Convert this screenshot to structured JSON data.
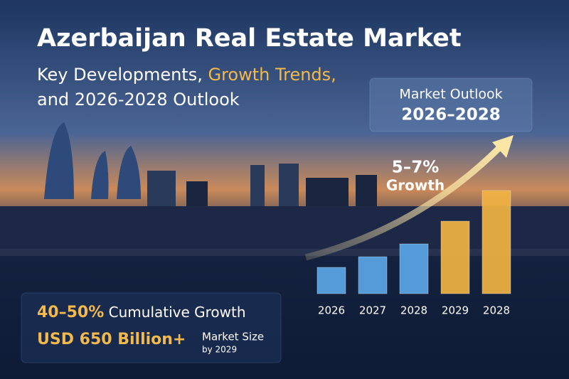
{
  "header": {
    "title": "Azerbaijan Real Estate Market",
    "subtitle_start": "Key Developments,",
    "subtitle_highlight": "Growth Trends,",
    "subtitle_end": "and 2026-2028 Outlook"
  },
  "outlook": {
    "label": "Market Outlook",
    "years": "2026–2028"
  },
  "growth": {
    "range": "5–7%",
    "label": "Growth"
  },
  "stats": {
    "growth_value": "40–50%",
    "growth_label": "Cumulative Growth",
    "size_value": "USD 650 Billion+",
    "size_label": "Market Size",
    "size_note": "by 2029"
  },
  "chart_data": {
    "type": "bar",
    "categories": [
      "2026",
      "2027",
      "2028",
      "2029",
      "2028"
    ],
    "values": [
      37,
      52,
      70,
      102,
      145
    ],
    "colors": [
      "#5aa6e6",
      "#5aa6e6",
      "#5aa6e6",
      "#f0b343",
      "#f0b343"
    ]
  }
}
